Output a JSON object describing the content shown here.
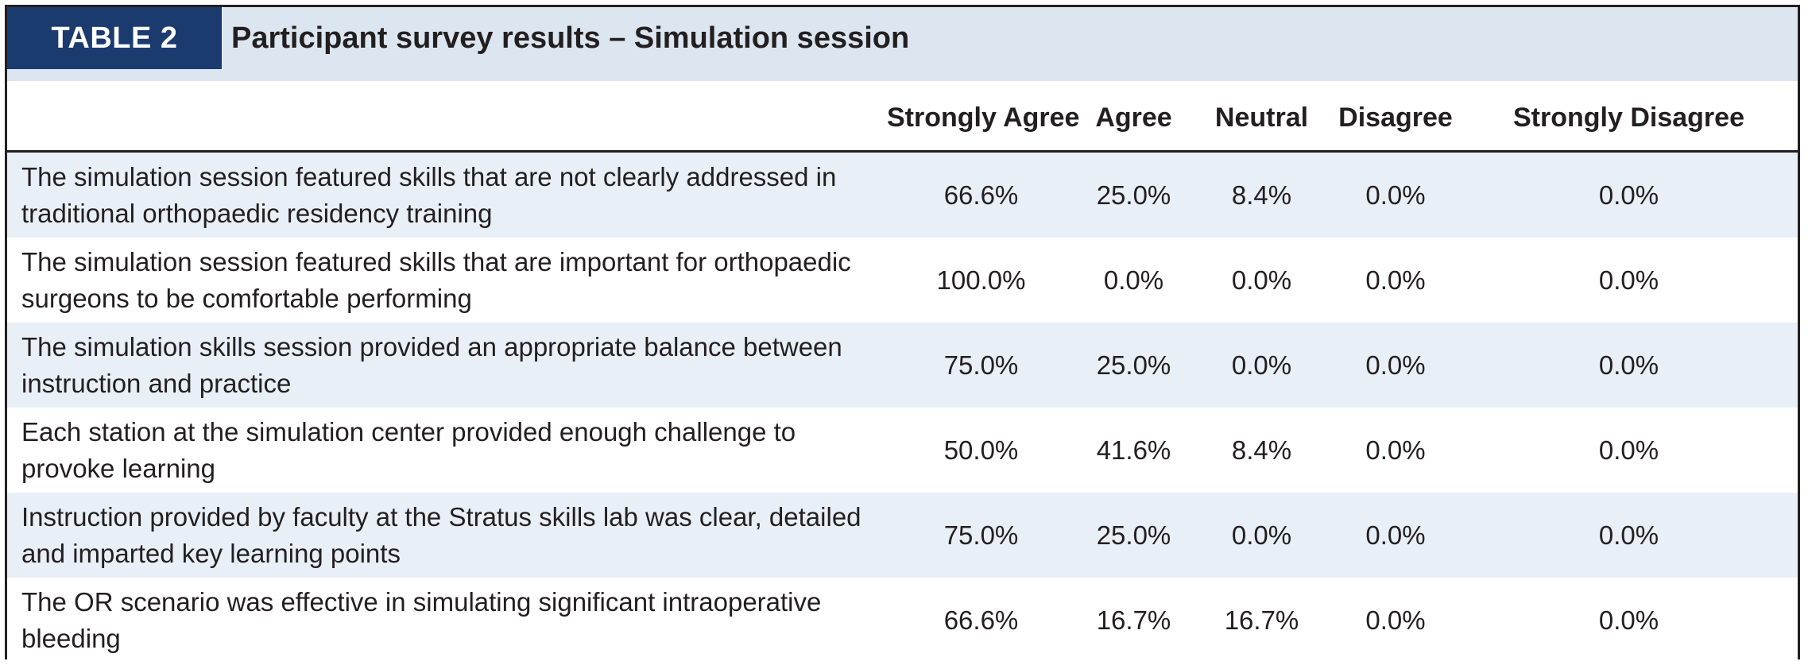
{
  "table_label": "TABLE 2",
  "table_title": "Participant survey results – Simulation session",
  "columns": [
    "",
    "Strongly Agree",
    "Agree",
    "Neutral",
    "Disagree",
    "Strongly Disagree"
  ],
  "rows": [
    {
      "statement": "The simulation session featured skills that are not clearly addressed in traditional orthopaedic residency training",
      "values": [
        "66.6%",
        "25.0%",
        "8.4%",
        "0.0%",
        "0.0%"
      ]
    },
    {
      "statement": "The simulation session featured skills that are important for orthopaedic surgeons to be comfortable performing",
      "values": [
        "100.0%",
        "0.0%",
        "0.0%",
        "0.0%",
        "0.0%"
      ]
    },
    {
      "statement": "The simulation skills session provided an appropriate balance between instruction and practice",
      "values": [
        "75.0%",
        "25.0%",
        "0.0%",
        "0.0%",
        "0.0%"
      ]
    },
    {
      "statement": "Each station at the simulation center provided enough challenge to provoke learning",
      "values": [
        "50.0%",
        "41.6%",
        "8.4%",
        "0.0%",
        "0.0%"
      ]
    },
    {
      "statement": "Instruction provided by faculty at the Stratus skills lab was clear, detailed and imparted key learning points",
      "values": [
        "75.0%",
        "25.0%",
        "0.0%",
        "0.0%",
        "0.0%"
      ]
    },
    {
      "statement": "The OR scenario was effective in simulating significant intraoperative bleeding",
      "values": [
        "66.6%",
        "16.7%",
        "16.7%",
        "0.0%",
        "0.0%"
      ]
    }
  ]
}
